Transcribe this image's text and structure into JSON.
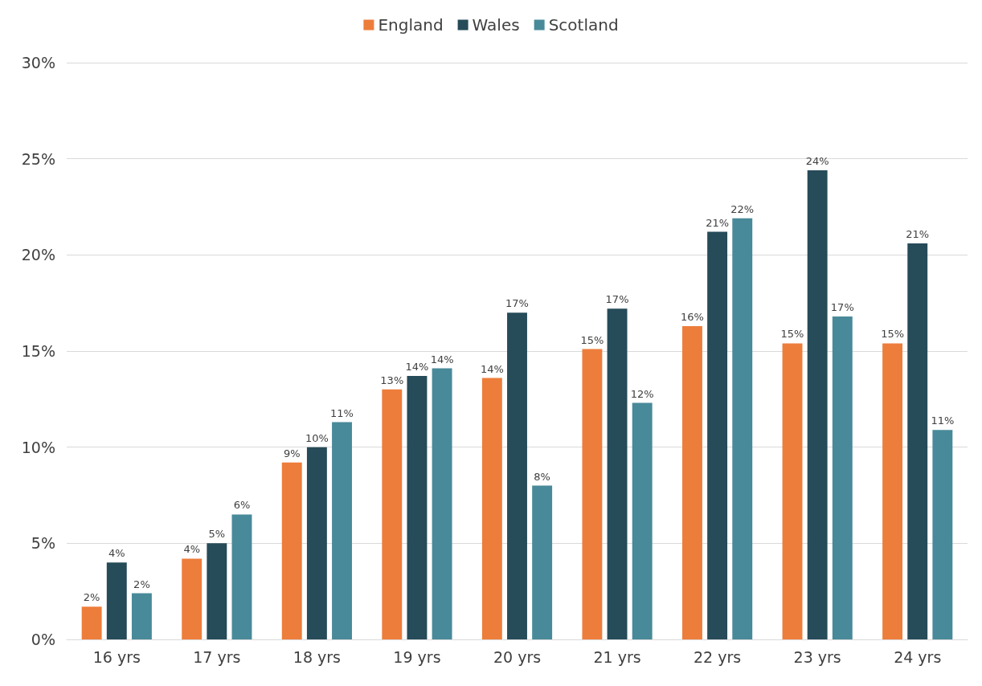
{
  "chart_data": {
    "type": "bar",
    "categories": [
      "16 yrs",
      "17 yrs",
      "18 yrs",
      "19 yrs",
      "20 yrs",
      "21 yrs",
      "22 yrs",
      "23 yrs",
      "24 yrs"
    ],
    "series": [
      {
        "name": "England",
        "color": "#ed7d3b",
        "values": [
          1.7,
          4.2,
          9.2,
          13.0,
          13.6,
          15.1,
          16.3,
          15.4,
          15.4
        ],
        "value_labels": [
          "2%",
          "4%",
          "9%",
          "13%",
          "14%",
          "15%",
          "16%",
          "15%",
          "15%"
        ]
      },
      {
        "name": "Wales",
        "color": "#264b59",
        "values": [
          4.0,
          5.0,
          10.0,
          13.7,
          17.0,
          17.2,
          21.2,
          24.4,
          20.6
        ],
        "value_labels": [
          "4%",
          "5%",
          "10%",
          "14%",
          "17%",
          "17%",
          "21%",
          "24%",
          "21%"
        ]
      },
      {
        "name": "Scotland",
        "color": "#488a99",
        "values": [
          2.4,
          6.5,
          11.3,
          14.1,
          8.0,
          12.3,
          21.9,
          16.8,
          10.9
        ],
        "value_labels": [
          "2%",
          "6%",
          "11%",
          "14%",
          "8%",
          "12%",
          "22%",
          "17%",
          "11%"
        ]
      }
    ],
    "ylim": [
      0,
      30
    ],
    "yticks": [
      {
        "value": 0,
        "label": "0%"
      },
      {
        "value": 5,
        "label": "5%"
      },
      {
        "value": 10,
        "label": "10%"
      },
      {
        "value": 15,
        "label": "15%"
      },
      {
        "value": 20,
        "label": "20%"
      },
      {
        "value": 25,
        "label": "25%"
      },
      {
        "value": 30,
        "label": "30%"
      }
    ],
    "grid": "y",
    "legend": "top"
  }
}
